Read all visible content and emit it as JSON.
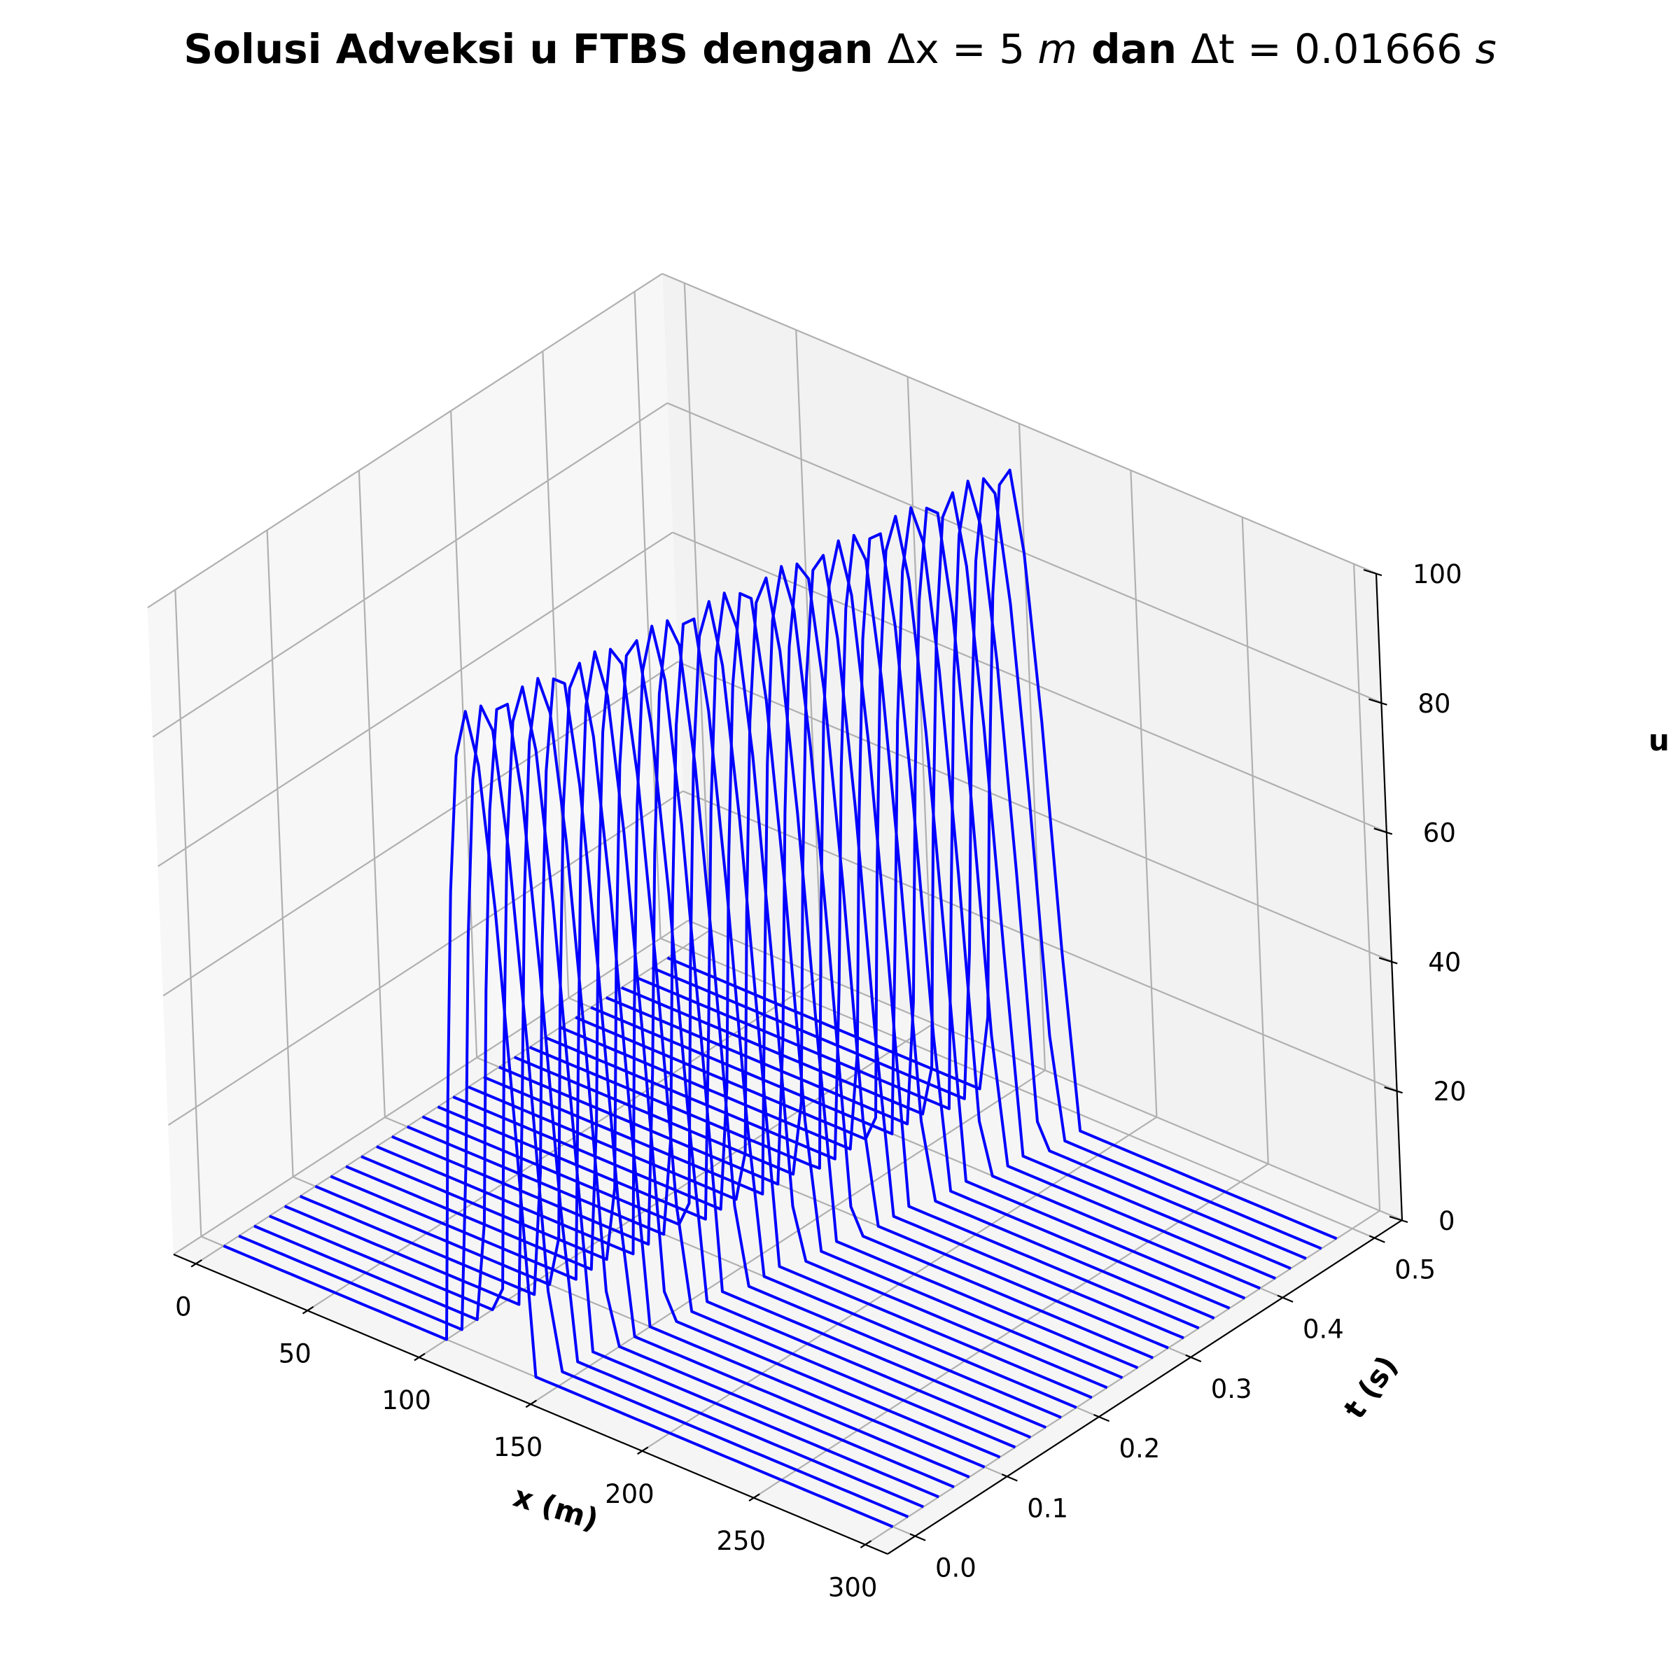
{
  "chart_data": {
    "type": "line",
    "title": {
      "bold_part1": "Solusi Adveksi u FTBS dengan ",
      "dx_label": "Δx",
      "dx_value": " = 5 ",
      "dx_unit": "m",
      "bold_part2": " dan ",
      "dt_label": "Δt",
      "dt_value": " = 0.01666 ",
      "dt_unit": "s"
    },
    "xlabel": "x (m)",
    "ylabel": "t (s)",
    "zlabel": "u",
    "xlim": [
      -10,
      310
    ],
    "ylim": [
      -0.03,
      0.53
    ],
    "zlim": [
      0,
      100
    ],
    "x_ticks": [
      "0",
      "50",
      "100",
      "150",
      "200",
      "250",
      "300"
    ],
    "y_ticks": [
      "0.0",
      "0.1",
      "0.2",
      "0.3",
      "0.4",
      "0.5"
    ],
    "z_ticks": [
      "0",
      "20",
      "40",
      "60",
      "80",
      "100"
    ],
    "grid": true,
    "line_color": "#0000ff",
    "pulse": {
      "x_start": 100,
      "x_end": 140,
      "peak": 100,
      "x_speed_per_s": 90,
      "domain": [
        0,
        300
      ],
      "dx": 5
    },
    "series_times": [
      0.0,
      0.01666,
      0.03332,
      0.04998,
      0.06664,
      0.0833,
      0.09996,
      0.11662,
      0.13328,
      0.14994,
      0.1666,
      0.18326,
      0.19992,
      0.21658,
      0.23324,
      0.2499,
      0.26656,
      0.28322,
      0.29988,
      0.31654,
      0.3332,
      0.34986,
      0.36652,
      0.38318,
      0.39984,
      0.4165,
      0.43316,
      0.44982,
      0.46648,
      0.48314
    ]
  }
}
